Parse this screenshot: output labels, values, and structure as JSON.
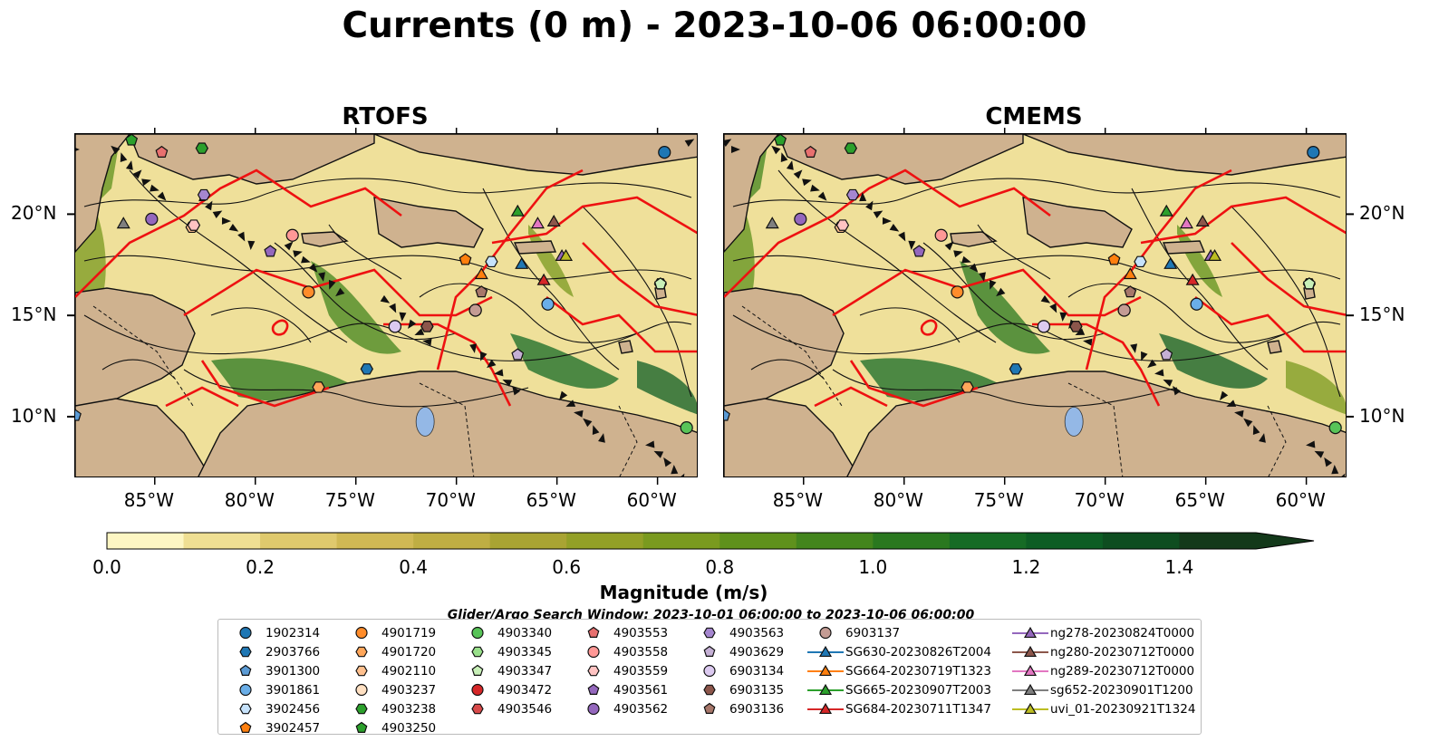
{
  "figure": {
    "title": "Currents (0 m) - 2023-10-06 06:00:00",
    "panels": [
      {
        "title": "RTOFS"
      },
      {
        "title": "CMEMS"
      }
    ],
    "lon_ticks": [
      "85°W",
      "80°W",
      "75°W",
      "70°W",
      "65°W",
      "60°W"
    ],
    "lat_ticks": [
      "20°N",
      "15°N",
      "10°N"
    ],
    "map_extent": {
      "lon": [
        -89,
        -58
      ],
      "lat": [
        7,
        24
      ]
    }
  },
  "colorbar": {
    "label": "Magnitude (m/s)",
    "ticks": [
      "0.0",
      "0.2",
      "0.4",
      "0.6",
      "0.8",
      "1.0",
      "1.2",
      "1.4"
    ],
    "range": [
      0,
      1.5
    ],
    "extend": "max",
    "colors": [
      "#fdf6c3",
      "#efdf93",
      "#dfc96d",
      "#d0b954",
      "#bfae43",
      "#a9a433",
      "#93a027",
      "#7a9a1f",
      "#5f911c",
      "#43851d",
      "#2a781f",
      "#166b25",
      "#0d5d24",
      "#0e4d20",
      "#13391a"
    ]
  },
  "legend": {
    "title": "Glider/Argo Search Window: 2023-10-01 06:00:00 to 2023-10-06 06:00:00",
    "items": [
      {
        "label": "1902314",
        "marker": "circle",
        "color": "#1f77b4",
        "lon": -59.7,
        "lat": 23.1
      },
      {
        "label": "2903766",
        "marker": "hexagon",
        "color": "#1f77b4",
        "lon": -74.5,
        "lat": 12.4
      },
      {
        "label": "3901300",
        "marker": "pentagon",
        "color": "#5b9bd5",
        "lon": -89.0,
        "lat": 10.1
      },
      {
        "label": "3901861",
        "marker": "circle",
        "color": "#6aaee8",
        "lon": -65.5,
        "lat": 15.6
      },
      {
        "label": "3902456",
        "marker": "hexagon",
        "color": "#c6e2fb",
        "lon": -68.3,
        "lat": 17.7
      },
      {
        "label": "3902457",
        "marker": "pentagon",
        "color": "#ff7f0e",
        "lon": -69.6,
        "lat": 17.8
      },
      {
        "label": "4901719",
        "marker": "circle",
        "color": "#ff8c2a",
        "lon": -77.4,
        "lat": 16.2
      },
      {
        "label": "4901720",
        "marker": "hexagon",
        "color": "#ffa65a",
        "lon": -76.9,
        "lat": 11.5
      },
      {
        "label": "4902110",
        "marker": "hexagon",
        "color": "#ffc08e",
        "lon": -83.2,
        "lat": 19.4
      },
      {
        "label": "4903237",
        "marker": "circle",
        "color": "#ffe0c2",
        "lon": -73.1,
        "lat": 14.5
      },
      {
        "label": "4903238",
        "marker": "hexagon",
        "color": "#2ca02c",
        "lon": -82.7,
        "lat": 23.3
      },
      {
        "label": "4903250",
        "marker": "pentagon",
        "color": "#2ca02c",
        "lon": -86.2,
        "lat": 23.7
      },
      {
        "label": "4903340",
        "marker": "circle",
        "color": "#58c458",
        "lon": -58.6,
        "lat": 9.5
      },
      {
        "label": "4903345",
        "marker": "hexagon",
        "color": "#98df8a",
        "lon": -59.9,
        "lat": 16.6
      },
      {
        "label": "4903347",
        "marker": "pentagon",
        "color": "#c8f0b8",
        "lon": -59.9,
        "lat": 16.6
      },
      {
        "label": "4903472",
        "marker": "circle",
        "color": "#d62728",
        "lon": -69.1,
        "lat": 15.3
      },
      {
        "label": "4903546",
        "marker": "hexagon",
        "color": "#d84a4a",
        "lon": -71.5,
        "lat": 14.5
      },
      {
        "label": "4903553",
        "marker": "pentagon",
        "color": "#e8706f",
        "lon": -84.7,
        "lat": 23.1
      },
      {
        "label": "4903558",
        "marker": "circle",
        "color": "#ff9896",
        "lon": -78.2,
        "lat": 19.0
      },
      {
        "label": "4903559",
        "marker": "hexagon",
        "color": "#ffc3c2",
        "lon": -83.1,
        "lat": 19.5
      },
      {
        "label": "4903561",
        "marker": "pentagon",
        "color": "#9467bd",
        "lon": -79.3,
        "lat": 18.2
      },
      {
        "label": "4903562",
        "marker": "circle",
        "color": "#9467bd",
        "lon": -85.2,
        "lat": 19.8
      },
      {
        "label": "4903563",
        "marker": "hexagon",
        "color": "#a586cf",
        "lon": -82.6,
        "lat": 21.0
      },
      {
        "label": "4903629",
        "marker": "pentagon",
        "color": "#c5b0d5",
        "lon": -67.0,
        "lat": 13.1
      },
      {
        "label": "6903134",
        "marker": "circle",
        "color": "#dccaf0",
        "lon": -73.1,
        "lat": 14.5
      },
      {
        "label": "6903135",
        "marker": "hexagon",
        "color": "#8c564b",
        "lon": -71.5,
        "lat": 14.5
      },
      {
        "label": "6903136",
        "marker": "pentagon",
        "color": "#a7776a",
        "lon": -68.8,
        "lat": 16.2
      },
      {
        "label": "6903137",
        "marker": "circle",
        "color": "#c49c94",
        "lon": -69.1,
        "lat": 15.3
      },
      {
        "label": "SG630-20230826T2004",
        "marker": "triangle",
        "color": "#1f77b4",
        "line": true,
        "lon": -66.8,
        "lat": 17.6
      },
      {
        "label": "SG664-20230719T1323",
        "marker": "triangle",
        "color": "#ff7f0e",
        "line": true,
        "lon": -68.8,
        "lat": 17.1
      },
      {
        "label": "SG665-20230907T2003",
        "marker": "triangle",
        "color": "#2ca02c",
        "line": true,
        "lon": -67.0,
        "lat": 20.2
      },
      {
        "label": "SG684-20230711T1347",
        "marker": "triangle",
        "color": "#d62728",
        "line": true,
        "lon": -65.7,
        "lat": 16.8
      },
      {
        "label": "ng278-20230824T0000",
        "marker": "triangle",
        "color": "#9467bd",
        "line": true,
        "lon": -64.8,
        "lat": 18.0
      },
      {
        "label": "ng280-20230712T0000",
        "marker": "triangle",
        "color": "#8c564b",
        "line": true,
        "lon": -65.2,
        "lat": 19.7
      },
      {
        "label": "ng289-20230712T0000",
        "marker": "triangle",
        "color": "#e377c2",
        "line": true,
        "lon": -66.0,
        "lat": 19.6
      },
      {
        "label": "sg652-20230901T1200",
        "marker": "triangle",
        "color": "#7f7f7f",
        "line": true,
        "lon": -86.6,
        "lat": 19.6
      },
      {
        "label": "uvi_01-20230921T1324",
        "marker": "triangle",
        "color": "#bcbd22",
        "line": true,
        "lon": -64.6,
        "lat": 18.0
      }
    ]
  }
}
